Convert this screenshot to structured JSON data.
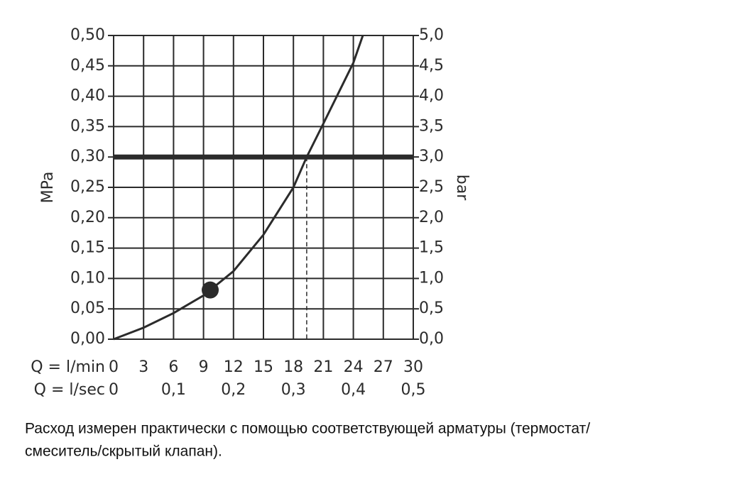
{
  "chart_data": {
    "type": "line",
    "y_label": "MPa",
    "y2_label": "bar",
    "x_label": "Q = l/min",
    "x2_label": "Q = l/sec",
    "x": [
      0,
      3,
      6,
      9,
      12,
      15,
      18,
      19.33,
      21,
      24,
      24.95
    ],
    "values": [
      0,
      0.019,
      0.043,
      0.072,
      0.112,
      0.172,
      0.25,
      0.3,
      0.355,
      0.455,
      0.5
    ],
    "color": "#2b2b2b",
    "marker": {
      "x": 9.67,
      "y": 0.081
    },
    "reference_y": 0.3,
    "drop_x": 19.33,
    "xlim": [
      0,
      30
    ],
    "xticks": [
      0,
      3,
      6,
      9,
      12,
      15,
      18,
      21,
      24,
      27,
      30
    ],
    "x2lim": [
      0,
      0.5
    ],
    "x2ticks": [
      0,
      {
        "value": 0.1,
        "label": "0,1"
      },
      {
        "value": 0.2,
        "label": "0,2"
      },
      {
        "value": 0.3,
        "label": "0,3"
      },
      {
        "value": 0.4,
        "label": "0,4"
      },
      {
        "value": 0.5,
        "label": "0,5"
      }
    ],
    "ylim": [
      0,
      0.5
    ],
    "yticks": [
      {
        "value": 0,
        "label": "0,00"
      },
      {
        "value": 0.05,
        "label": "0,05"
      },
      {
        "value": 0.1,
        "label": "0,10"
      },
      {
        "value": 0.15,
        "label": "0,15"
      },
      {
        "value": 0.2,
        "label": "0,20"
      },
      {
        "value": 0.25,
        "label": "0,25"
      },
      {
        "value": 0.3,
        "label": "0,30"
      },
      {
        "value": 0.35,
        "label": "0,35"
      },
      {
        "value": 0.4,
        "label": "0,40"
      },
      {
        "value": 0.45,
        "label": "0,45"
      },
      {
        "value": 0.5,
        "label": "0,50"
      }
    ],
    "y2lim": [
      0,
      5
    ],
    "y2ticks": [
      {
        "value": 0,
        "label": "0,0"
      },
      {
        "value": 0.5,
        "label": "0,5"
      },
      {
        "value": 1,
        "label": "1,0"
      },
      {
        "value": 1.5,
        "label": "1,5"
      },
      {
        "value": 2,
        "label": "2,0"
      },
      {
        "value": 2.5,
        "label": "2,5"
      },
      {
        "value": 3,
        "label": "3,0"
      },
      {
        "value": 3.5,
        "label": "3,5"
      },
      {
        "value": 4,
        "label": "4,0"
      },
      {
        "value": 4.5,
        "label": "4,5"
      },
      {
        "value": 5,
        "label": "5,0"
      }
    ],
    "grid": true,
    "note": [
      "Расход измерен практически с помощью соответствующей арматуры (термостат/",
      "смеситель/скрытый клапан)."
    ]
  }
}
